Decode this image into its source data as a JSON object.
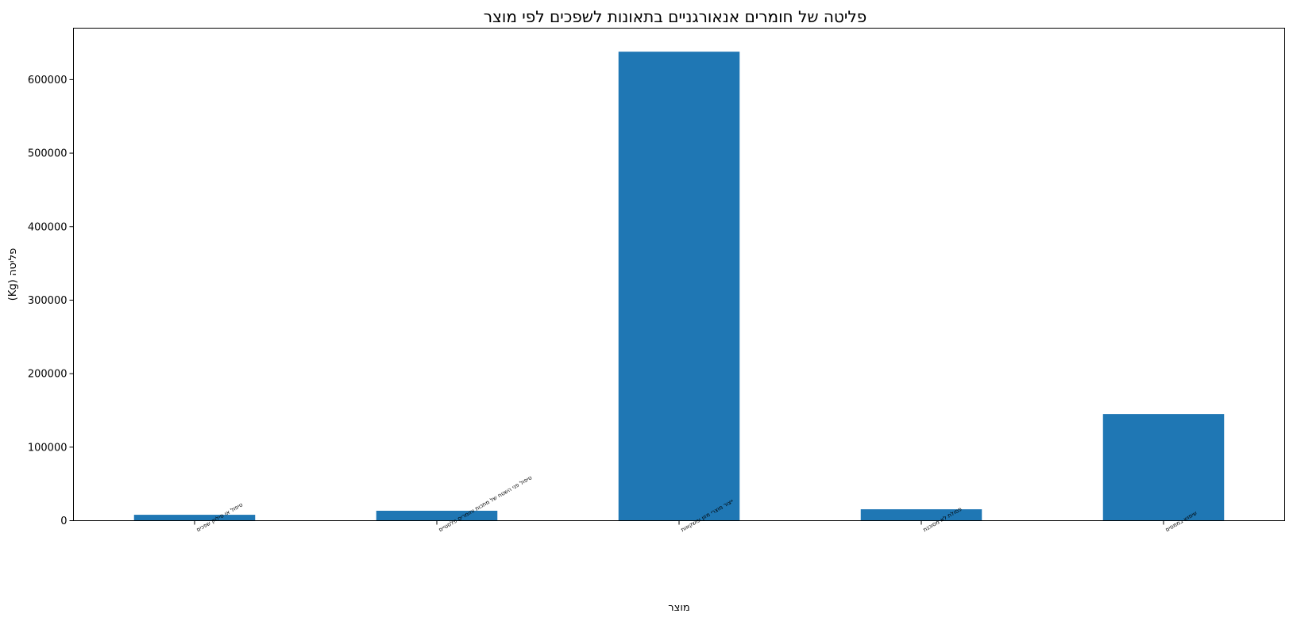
{
  "chart_data": {
    "type": "bar",
    "title": "פליטה של חומרים אנאורגניים בתאונות לשפכים לפי מוצר",
    "xlabel": "מוצר",
    "ylabel": "פליטה (Kg)",
    "categories": [
      "טיפול או סילוק שפכים",
      "טיפול פני השטח של מתכות וחומרים פלסטיים",
      "ייצור מוצרי מזון ומשקאות",
      "פסולת לא מסוכנת",
      "שימוש בממסים"
    ],
    "values": [
      8000,
      13500,
      638000,
      15500,
      145000
    ],
    "ylim": [
      0,
      670000
    ],
    "yticks": [
      0,
      100000,
      200000,
      300000,
      400000,
      500000,
      600000
    ],
    "bar_color": "#1f77b4",
    "grid": false,
    "legend": "none"
  }
}
